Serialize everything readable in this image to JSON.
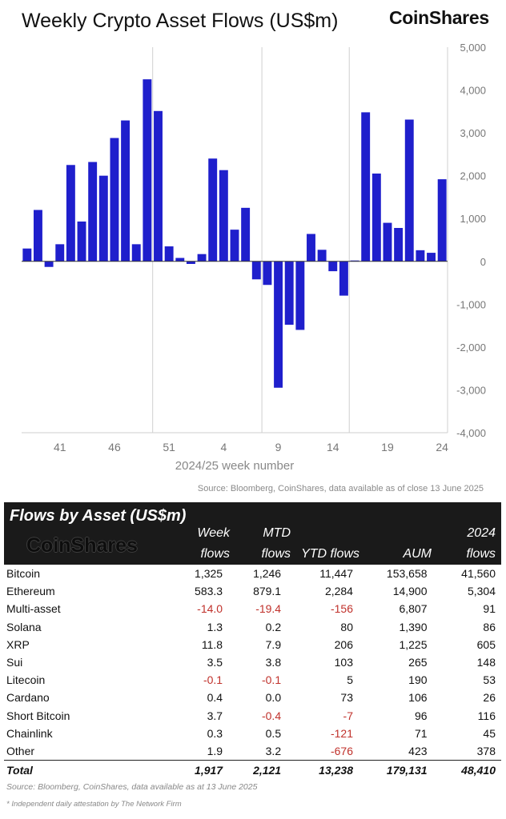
{
  "title": "Weekly Crypto Asset Flows (US$m)",
  "brand": "CoinShares",
  "source_top": "Source: Bloomberg, CoinShares, data available as of close 13 June 2025",
  "chart_data": {
    "type": "bar",
    "title": "Weekly Crypto Asset Flows (US$m)",
    "xlabel": "2024/25 week number",
    "ylabel": "",
    "ylim": [
      -4000,
      5000
    ],
    "yticks": [
      5000,
      4000,
      3000,
      2000,
      1000,
      0,
      -1000,
      -2000,
      -3000,
      -4000
    ],
    "ytick_labels": [
      "5,000",
      "4,000",
      "3,000",
      "2,000",
      "1,000",
      "0",
      "-1,000",
      "-2,000",
      "-3,000",
      "-4,000"
    ],
    "xtick_labels": [
      "41",
      "46",
      "51",
      "4",
      "9",
      "14",
      "19",
      "24"
    ],
    "xtick_positions": [
      3,
      8,
      13,
      18,
      23,
      28,
      33,
      38
    ],
    "x_gridlines_after": [
      11,
      21,
      29
    ],
    "bar_color": "#1f1fcc",
    "values": [
      300,
      1200,
      -130,
      400,
      2250,
      930,
      2320,
      2000,
      2880,
      3290,
      400,
      4250,
      3510,
      350,
      80,
      -60,
      170,
      2400,
      2130,
      740,
      1250,
      -420,
      -550,
      -2950,
      -1480,
      -1600,
      640,
      270,
      -230,
      -800,
      20,
      3480,
      2050,
      900,
      780,
      3310,
      260,
      200,
      1917
    ]
  },
  "table": {
    "title": "Flows by Asset (US$m)",
    "brand": "CoinShares",
    "headers": {
      "week_top": "Week",
      "week_bot": "flows",
      "mtd_top": "MTD",
      "mtd_bot": "flows",
      "ytd": "YTD flows",
      "aum": "AUM",
      "y24_top": "2024",
      "y24_bot": "flows"
    },
    "rows": [
      {
        "name": "Bitcoin",
        "week": "1,325",
        "mtd": "1,246",
        "ytd": "11,447",
        "aum": "153,658",
        "y24": "41,560"
      },
      {
        "name": "Ethereum",
        "week": "583.3",
        "mtd": "879.1",
        "ytd": "2,284",
        "aum": "14,900",
        "y24": "5,304"
      },
      {
        "name": "Multi-asset",
        "week": "-14.0",
        "mtd": "-19.4",
        "ytd": "-156",
        "aum": "6,807",
        "y24": "91"
      },
      {
        "name": "Solana",
        "week": "1.3",
        "mtd": "0.2",
        "ytd": "80",
        "aum": "1,390",
        "y24": "86"
      },
      {
        "name": "XRP",
        "week": "11.8",
        "mtd": "7.9",
        "ytd": "206",
        "aum": "1,225",
        "y24": "605"
      },
      {
        "name": "Sui",
        "week": "3.5",
        "mtd": "3.8",
        "ytd": "103",
        "aum": "265",
        "y24": "148"
      },
      {
        "name": "Litecoin",
        "week": "-0.1",
        "mtd": "-0.1",
        "ytd": "5",
        "aum": "190",
        "y24": "53"
      },
      {
        "name": "Cardano",
        "week": "0.4",
        "mtd": "0.0",
        "ytd": "73",
        "aum": "106",
        "y24": "26"
      },
      {
        "name": "Short Bitcoin",
        "week": "3.7",
        "mtd": "-0.4",
        "ytd": "-7",
        "aum": "96",
        "y24": "116"
      },
      {
        "name": "Chainlink",
        "week": "0.3",
        "mtd": "0.5",
        "ytd": "-121",
        "aum": "71",
        "y24": "45"
      },
      {
        "name": "Other",
        "week": "1.9",
        "mtd": "3.2",
        "ytd": "-676",
        "aum": "423",
        "y24": "378"
      }
    ],
    "total": {
      "name": "Total",
      "week": "1,917",
      "mtd": "2,121",
      "ytd": "13,238",
      "aum": "179,131",
      "y24": "48,410"
    },
    "source": "Source: Bloomberg, CoinShares, data available as at 13 June 2025",
    "footnote": "* Independent daily attestation by The Network Firm",
    "negative_color": "#c0312b"
  }
}
